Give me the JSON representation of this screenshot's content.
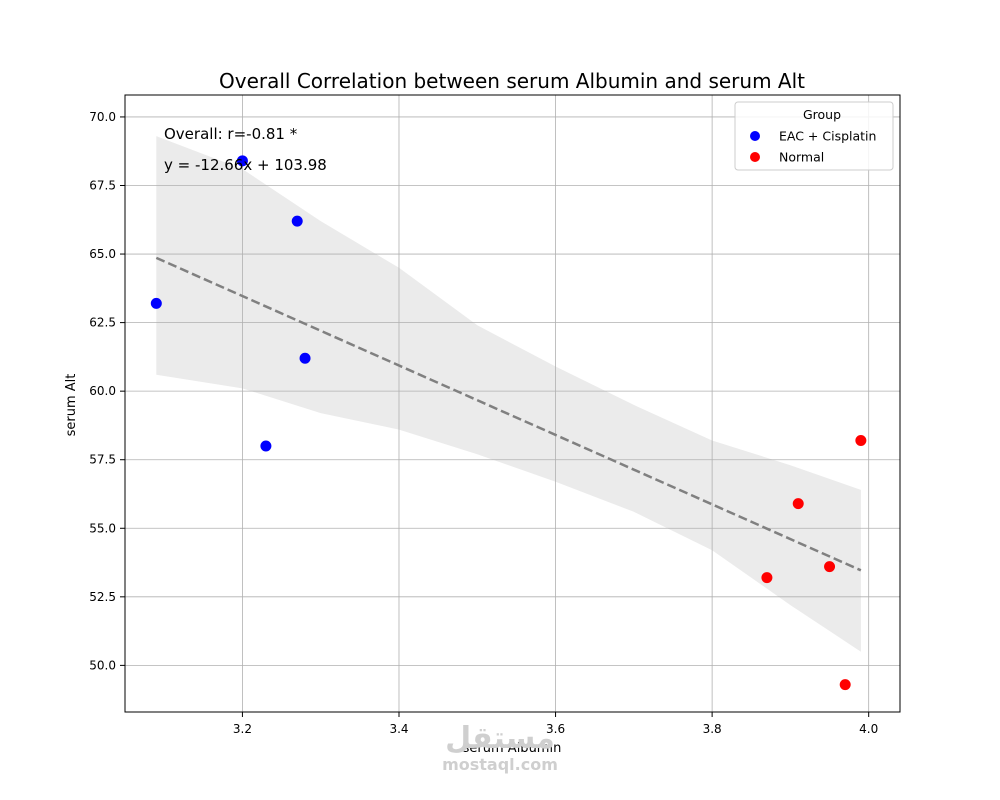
{
  "chart_data": {
    "type": "scatter",
    "title": "Overall Correlation between serum Albumin and serum Alt",
    "xlabel": "serum Albumin",
    "ylabel": "serum Alt",
    "xlim": [
      3.05,
      4.04
    ],
    "ylim": [
      48.3,
      70.8
    ],
    "xticks": [
      3.2,
      3.4,
      3.6,
      3.8,
      4.0
    ],
    "xtick_labels": [
      "3.2",
      "3.4",
      "3.6",
      "3.8",
      "4.0"
    ],
    "yticks": [
      50.0,
      52.5,
      55.0,
      57.5,
      60.0,
      62.5,
      65.0,
      67.5,
      70.0
    ],
    "ytick_labels": [
      "50.0",
      "52.5",
      "55.0",
      "57.5",
      "60.0",
      "62.5",
      "65.0",
      "67.5",
      "70.0"
    ],
    "grid": true,
    "legend": {
      "title": "Group",
      "location": "top-right"
    },
    "series": [
      {
        "name": "EAC + Cisplatin",
        "color": "#0000ff",
        "points": [
          {
            "x": 3.09,
            "y": 63.2
          },
          {
            "x": 3.2,
            "y": 68.4
          },
          {
            "x": 3.23,
            "y": 58.0
          },
          {
            "x": 3.27,
            "y": 66.2
          },
          {
            "x": 3.28,
            "y": 61.2
          }
        ]
      },
      {
        "name": "Normal",
        "color": "#ff0000",
        "points": [
          {
            "x": 3.87,
            "y": 53.2
          },
          {
            "x": 3.91,
            "y": 55.9
          },
          {
            "x": 3.95,
            "y": 53.6
          },
          {
            "x": 3.97,
            "y": 49.3
          },
          {
            "x": 3.99,
            "y": 58.2
          }
        ]
      }
    ],
    "regression": {
      "slope": -12.66,
      "intercept": 103.98,
      "x_range": [
        3.09,
        3.99
      ],
      "line_color": "#808080",
      "line_style": "dashed",
      "confidence_band": {
        "color": "#ebebeb",
        "x": [
          3.09,
          3.2,
          3.3,
          3.4,
          3.5,
          3.6,
          3.7,
          3.8,
          3.9,
          3.99
        ],
        "upper": [
          69.3,
          68.1,
          66.2,
          64.5,
          62.4,
          60.9,
          59.5,
          58.2,
          57.3,
          56.4
        ],
        "lower": [
          60.6,
          60.1,
          59.2,
          58.6,
          57.7,
          56.7,
          55.6,
          54.2,
          52.2,
          50.5
        ]
      }
    },
    "annotations": [
      "Overall: r=-0.81 *",
      "y = -12.66x + 103.98"
    ]
  },
  "watermark": {
    "logo": "مستقل",
    "text": "mostaql.com"
  }
}
